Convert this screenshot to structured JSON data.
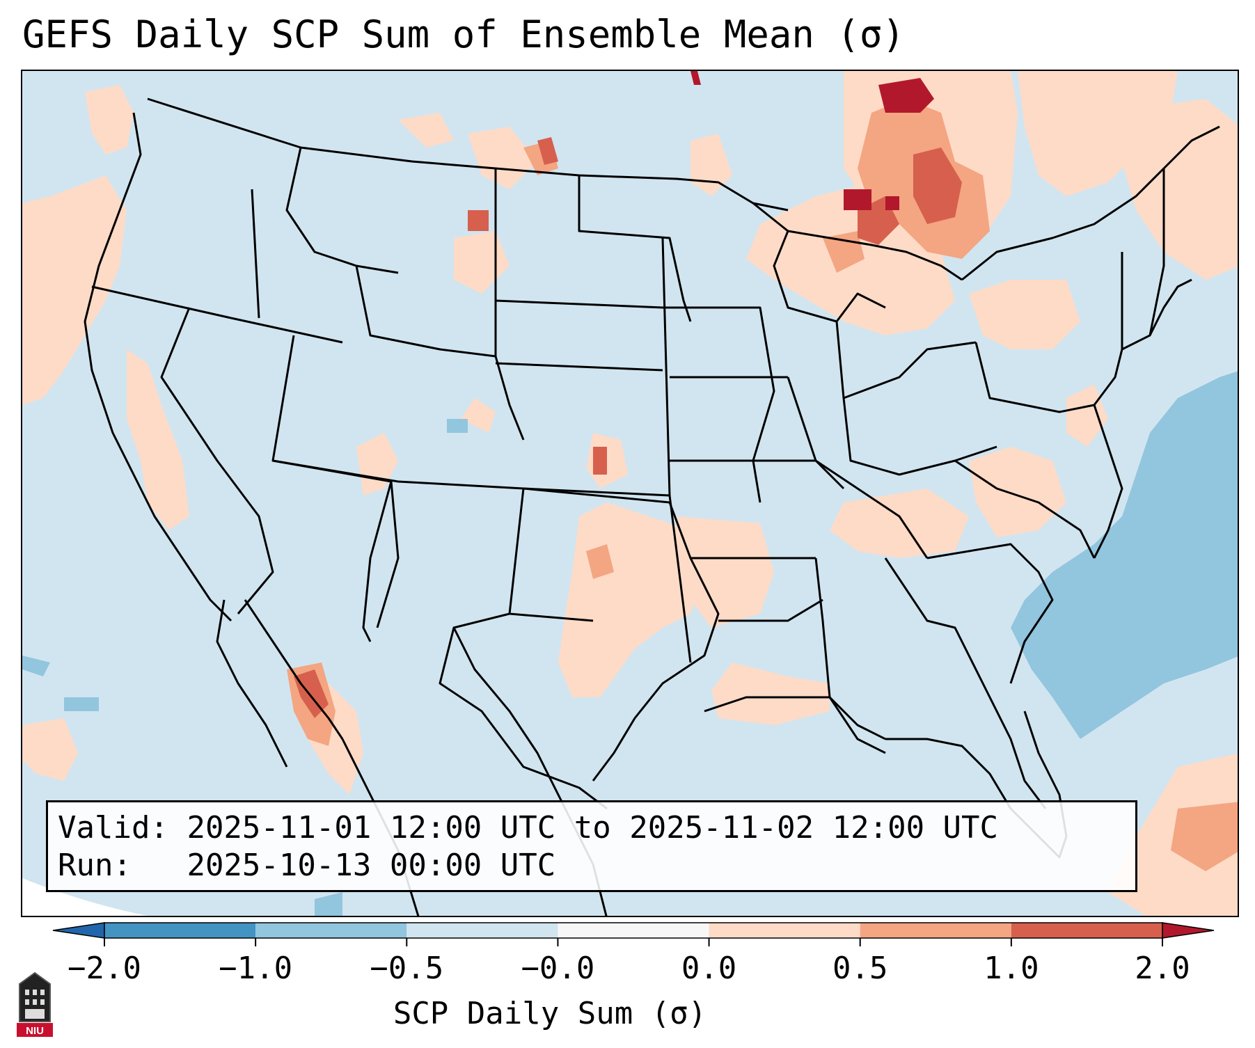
{
  "title": "GEFS Daily SCP Sum of Ensemble Mean (σ)",
  "info": {
    "valid_label": "Valid:",
    "valid_value": "2025-11-01 12:00 UTC to 2025-11-02 12:00 UTC",
    "run_label": "Run:",
    "run_value": "2025-10-13 00:00 UTC"
  },
  "colorbar": {
    "label": "SCP Daily Sum (σ)",
    "ticks": [
      "−2.0",
      "−1.0",
      "−0.5",
      "−0.0",
      "0.0",
      "0.5",
      "1.0",
      "2.0"
    ],
    "bins": [
      {
        "range": "< -2.0",
        "color": "#2166ac"
      },
      {
        "range": "-2.0 to -1.0",
        "color": "#4393c3"
      },
      {
        "range": "-1.0 to -0.5",
        "color": "#92c5de"
      },
      {
        "range": "-0.5 to -0.0",
        "color": "#d1e5f0"
      },
      {
        "range": "-0.0 to 0.0",
        "color": "#f7f7f7"
      },
      {
        "range": "0.0 to 0.5",
        "color": "#fddbc7"
      },
      {
        "range": "0.5 to 1.0",
        "color": "#f4a582"
      },
      {
        "range": "1.0 to 2.0",
        "color": "#d6604d"
      },
      {
        "range": "> 2.0",
        "color": "#b2182b"
      }
    ]
  },
  "map": {
    "region": "Continental United States",
    "background_color": "#d1e5f0",
    "notable_areas": [
      {
        "name": "Upper Michigan / Ontario",
        "level": "1.0 to 2.0+",
        "color": "#b2182b"
      },
      {
        "name": "Gulf of California",
        "level": "1.0 to 2.0",
        "color": "#d6604d"
      },
      {
        "name": "Western Atlantic",
        "level": "-1.0 to -0.5",
        "color": "#92c5de"
      },
      {
        "name": "Southern Plains",
        "level": "0.0 to 0.5",
        "color": "#fddbc7"
      }
    ]
  },
  "logo": {
    "text": "NIU",
    "icon": "university-building-icon"
  }
}
